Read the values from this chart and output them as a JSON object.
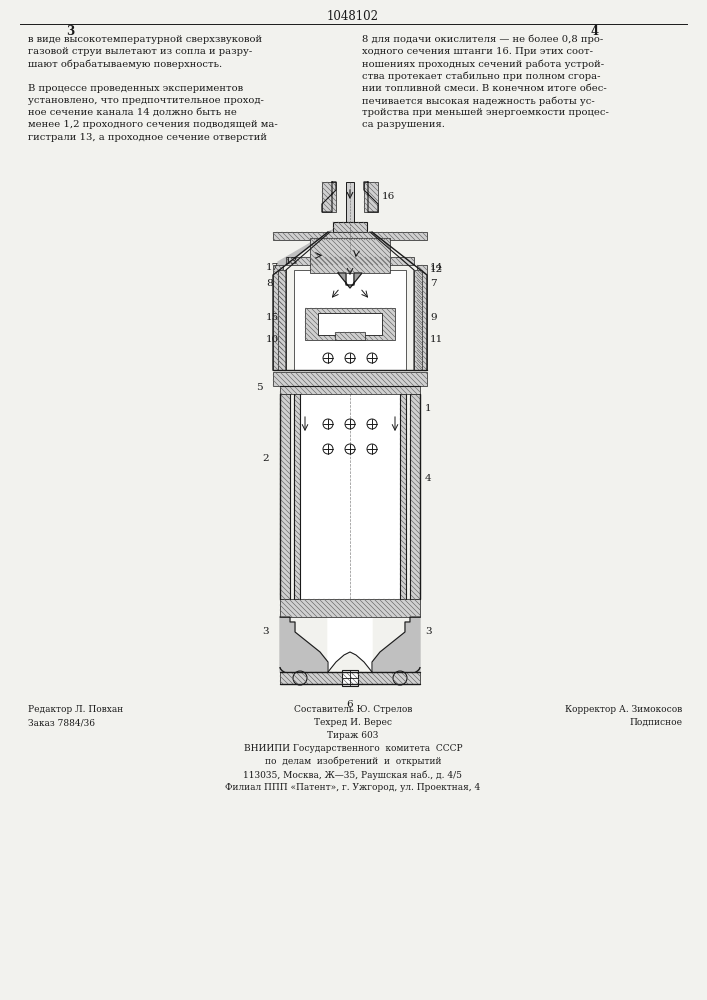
{
  "page_number_center": "1048102",
  "page_num_left": "3",
  "page_num_right": "4",
  "bg_color": "#f2f2ee",
  "text_color": "#1a1a1a",
  "left_text_lines": [
    "в виде высокотемпературной сверхзвуковой",
    "газовой струи вылетают из сопла и разру-",
    "шают обрабатываемую поверхность.",
    "",
    "В процессе проведенных экспериментов",
    "установлено, что предпочтительное проход-",
    "ное сечение канала 14 должно быть не",
    "менее 1,2 проходного сечения подводящей ма-",
    "гистрали 13, а проходное сечение отверстий"
  ],
  "right_text_lines": [
    "8 для подачи окислителя — не более 0,8 про-",
    "ходного сечения штанги 16. При этих соот-",
    "ношениях проходных сечений работа устрой-",
    "ства протекает стабильно при полном сгора-",
    "нии топливной смеси. В конечном итоге обес-",
    "печивается высокая надежность работы ус-",
    "тройства при меньшей энергоемкости процес-",
    "са разрушения."
  ],
  "bottom_left": [
    "Редактор Л. Повхан",
    "Заказ 7884/36"
  ],
  "bottom_center": [
    "Составитель Ю. Стрелов",
    "Техред И. Верес",
    "Тираж 603",
    "ВНИИПИ Государственного  комитета  СССР",
    "по  делам  изобретений  и  открытий",
    "113035, Москва, Ж—35, Раушская наб., д. 4/5",
    "Филиал ППП «Патент», г. Ужгород, ул. Проектная, 4"
  ],
  "bottom_right": [
    "Корректор А. Зимокосов",
    "Подписное"
  ]
}
